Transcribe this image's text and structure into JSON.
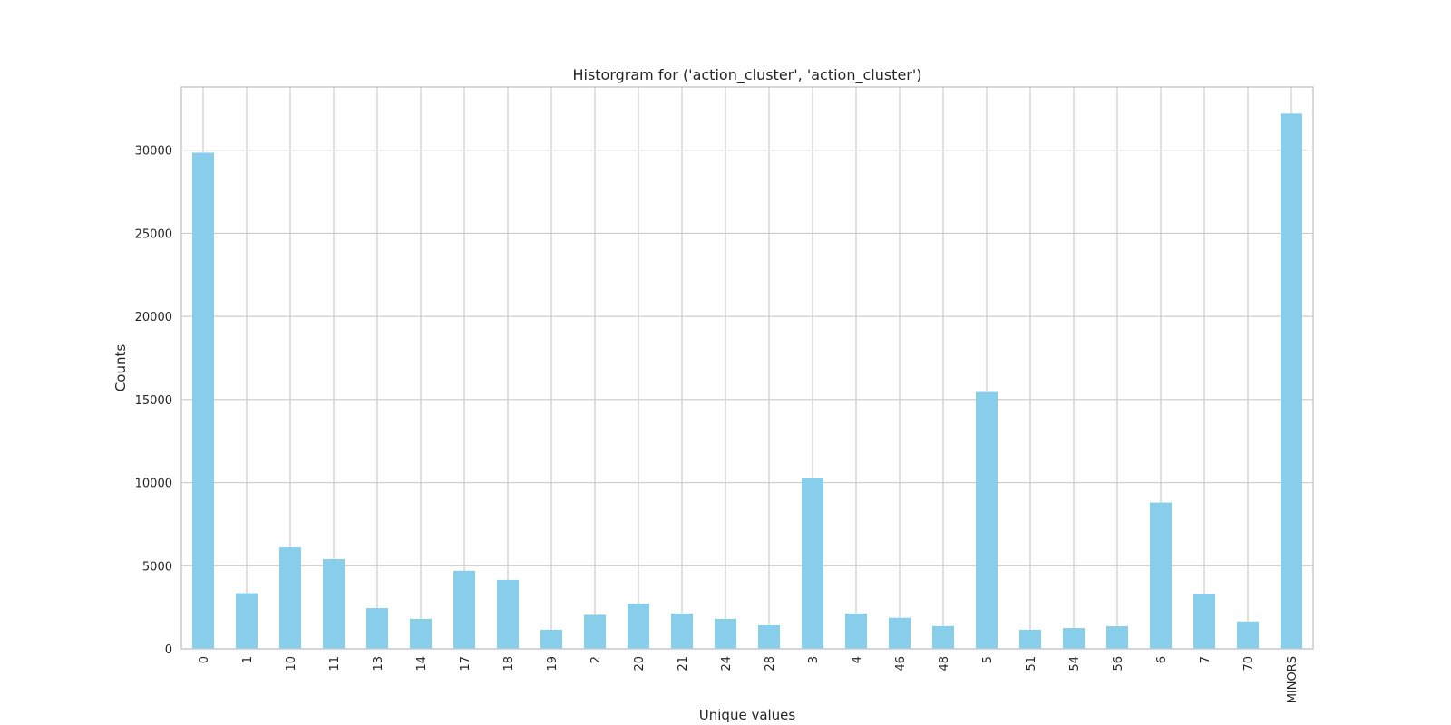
{
  "chart_data": {
    "type": "bar",
    "title": "Historgram for ('action_cluster', 'action_cluster')",
    "xlabel": "Unique values",
    "ylabel": "Counts",
    "categories": [
      "0",
      "1",
      "10",
      "11",
      "13",
      "14",
      "17",
      "18",
      "19",
      "2",
      "20",
      "21",
      "24",
      "28",
      "3",
      "4",
      "46",
      "48",
      "5",
      "51",
      "54",
      "56",
      "6",
      "7",
      "70",
      "MINORS"
    ],
    "values": [
      29850,
      3350,
      6100,
      5400,
      2450,
      1800,
      4700,
      4150,
      1150,
      2050,
      2720,
      2130,
      1800,
      1420,
      10250,
      2130,
      1870,
      1370,
      15450,
      1150,
      1250,
      1360,
      8800,
      3280,
      1650,
      32200
    ],
    "ylim": [
      0,
      33800
    ],
    "yticks": [
      0,
      5000,
      10000,
      15000,
      20000,
      25000,
      30000
    ],
    "grid": true,
    "bar_color": "#87ceeb",
    "grid_color": "#cccccc",
    "spine_color": "#cccccc"
  }
}
